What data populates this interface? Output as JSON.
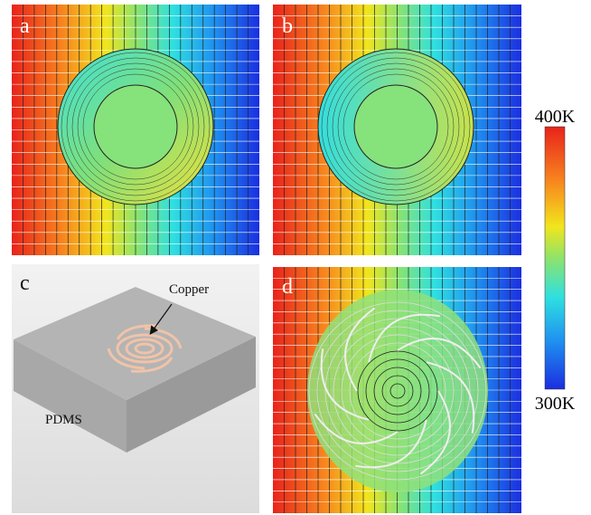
{
  "panels": [
    {
      "label": "a"
    },
    {
      "label": "b"
    },
    {
      "label": "c",
      "annotations": [
        "Copper",
        "PDMS"
      ]
    },
    {
      "label": "d"
    }
  ],
  "colorbar": {
    "max_label": "400K",
    "min_label": "300K"
  }
}
